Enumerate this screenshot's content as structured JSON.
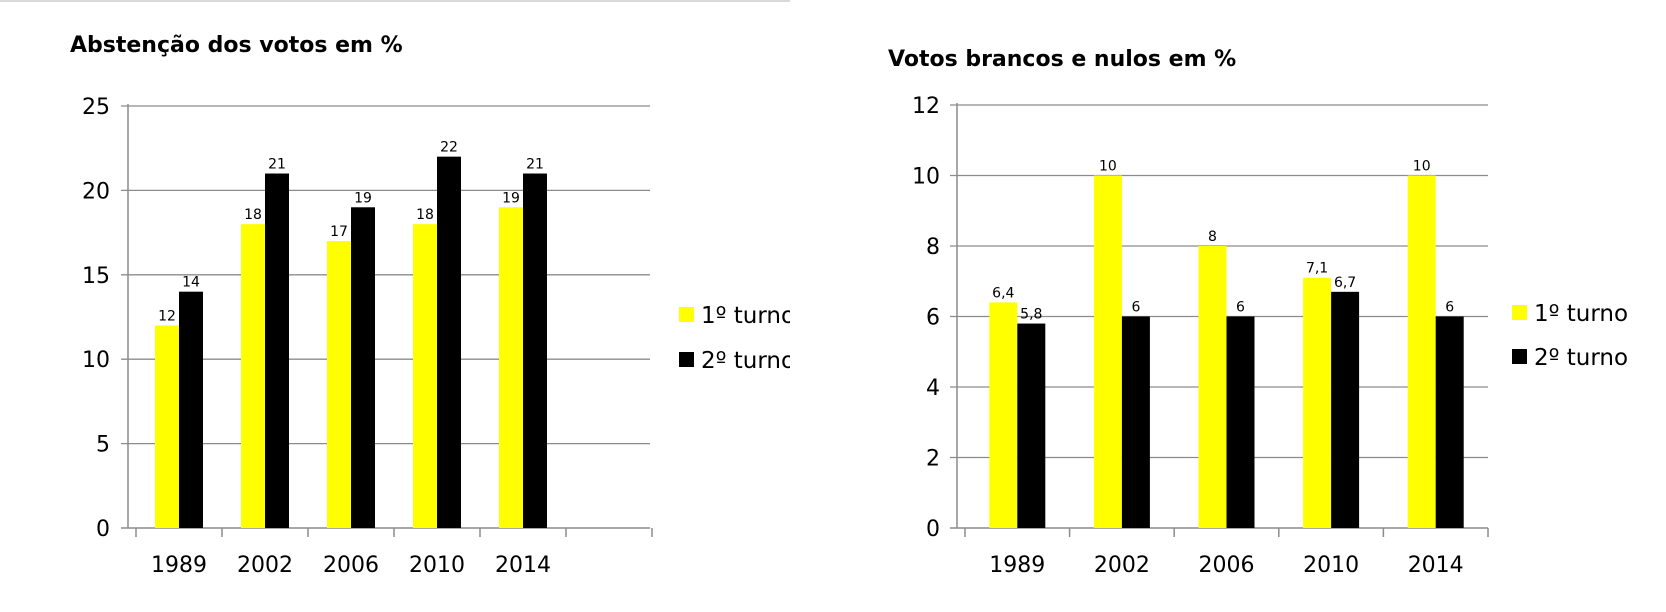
{
  "colors": {
    "turno1": "#ffff00",
    "turno2": "#000000"
  },
  "chart_data": [
    {
      "type": "bar",
      "title": "Abstenção dos votos em %",
      "categories": [
        "1989",
        "2002",
        "2006",
        "2010",
        "2014"
      ],
      "series": [
        {
          "name": "1º turno",
          "values": [
            12,
            18,
            17,
            18,
            19
          ],
          "labels": [
            "12",
            "18",
            "17",
            "18",
            "19"
          ]
        },
        {
          "name": "2º turno",
          "values": [
            14,
            21,
            19,
            22,
            21
          ],
          "labels": [
            "14",
            "21",
            "19",
            "22",
            "21"
          ]
        }
      ],
      "yticks": [
        "0",
        "5",
        "10",
        "15",
        "20",
        "25"
      ],
      "ylim": [
        0,
        25
      ],
      "grid": true,
      "legend": "right"
    },
    {
      "type": "bar",
      "title": "Votos brancos e nulos em %",
      "categories": [
        "1989",
        "2002",
        "2006",
        "2010",
        "2014"
      ],
      "series": [
        {
          "name": "1º turno",
          "values": [
            6.4,
            10,
            8,
            7.1,
            10
          ],
          "labels": [
            "6,4",
            "10",
            "8",
            "7,1",
            "10"
          ]
        },
        {
          "name": "2º turno",
          "values": [
            5.8,
            6,
            6,
            6.7,
            6
          ],
          "labels": [
            "5,8",
            "6",
            "6",
            "6,7",
            "6"
          ]
        }
      ],
      "yticks": [
        "0",
        "2",
        "4",
        "6",
        "8",
        "10",
        "12"
      ],
      "ylim": [
        0,
        12
      ],
      "grid": true,
      "legend": "right"
    }
  ]
}
